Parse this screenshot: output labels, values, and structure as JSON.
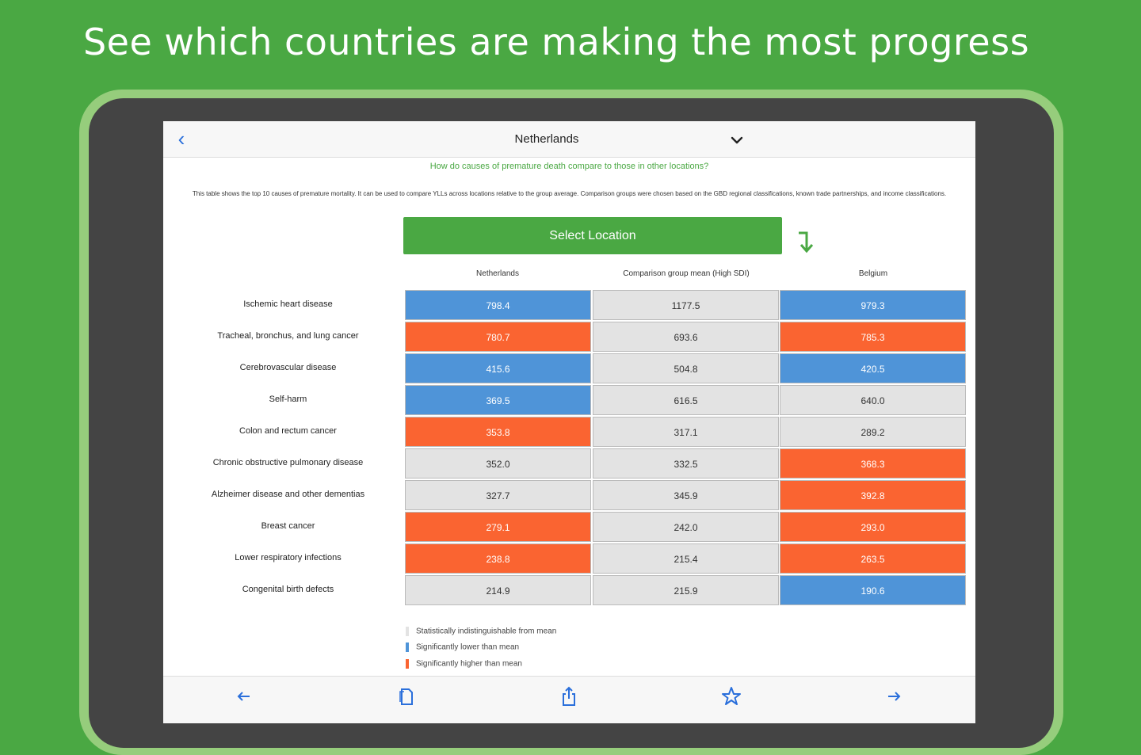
{
  "headline": "See which countries are making the most progress",
  "navbar": {
    "title": "Netherlands"
  },
  "question": "How do causes of premature death compare to those in other locations?",
  "description": "This table shows the top 10 causes of premature mortality. It can be used to compare YLLs across locations relative to the group average. Comparison groups were chosen based on the GBD regional classifications, known trade partnerships, and income classifications.",
  "select_button": "Select Location",
  "columns": [
    "Netherlands",
    "Comparison group mean (High SDI)",
    "Belgium"
  ],
  "colors": {
    "lower": "#4f94d8",
    "higher": "#fa6431",
    "neutral": "#e3e3e3",
    "brand_green": "#4aa843"
  },
  "rows": [
    {
      "label": "Ischemic heart disease",
      "values": [
        "798.4",
        "1177.5",
        "979.3"
      ],
      "status": [
        "lower",
        "neutral",
        "lower"
      ]
    },
    {
      "label": "Tracheal, bronchus, and lung cancer",
      "values": [
        "780.7",
        "693.6",
        "785.3"
      ],
      "status": [
        "higher",
        "neutral",
        "higher"
      ]
    },
    {
      "label": "Cerebrovascular disease",
      "values": [
        "415.6",
        "504.8",
        "420.5"
      ],
      "status": [
        "lower",
        "neutral",
        "lower"
      ]
    },
    {
      "label": "Self-harm",
      "values": [
        "369.5",
        "616.5",
        "640.0"
      ],
      "status": [
        "lower",
        "neutral",
        "neutral"
      ]
    },
    {
      "label": "Colon and rectum cancer",
      "values": [
        "353.8",
        "317.1",
        "289.2"
      ],
      "status": [
        "higher",
        "neutral",
        "neutral"
      ]
    },
    {
      "label": "Chronic obstructive pulmonary disease",
      "values": [
        "352.0",
        "332.5",
        "368.3"
      ],
      "status": [
        "neutral",
        "neutral",
        "higher"
      ]
    },
    {
      "label": "Alzheimer disease and other dementias",
      "values": [
        "327.7",
        "345.9",
        "392.8"
      ],
      "status": [
        "neutral",
        "neutral",
        "higher"
      ]
    },
    {
      "label": "Breast cancer",
      "values": [
        "279.1",
        "242.0",
        "293.0"
      ],
      "status": [
        "higher",
        "neutral",
        "higher"
      ]
    },
    {
      "label": "Lower respiratory infections",
      "values": [
        "238.8",
        "215.4",
        "263.5"
      ],
      "status": [
        "higher",
        "neutral",
        "higher"
      ]
    },
    {
      "label": "Congenital birth defects",
      "values": [
        "214.9",
        "215.9",
        "190.6"
      ],
      "status": [
        "neutral",
        "neutral",
        "lower"
      ]
    }
  ],
  "legend": [
    {
      "label": "Statistically indistinguishable from mean",
      "status": "neutral"
    },
    {
      "label": "Significantly lower than mean",
      "status": "lower"
    },
    {
      "label": "Significantly higher than mean",
      "status": "higher"
    }
  ],
  "toolbar_icons": [
    "back-arrow-icon",
    "document-icon",
    "share-icon",
    "star-icon",
    "forward-arrow-icon"
  ]
}
